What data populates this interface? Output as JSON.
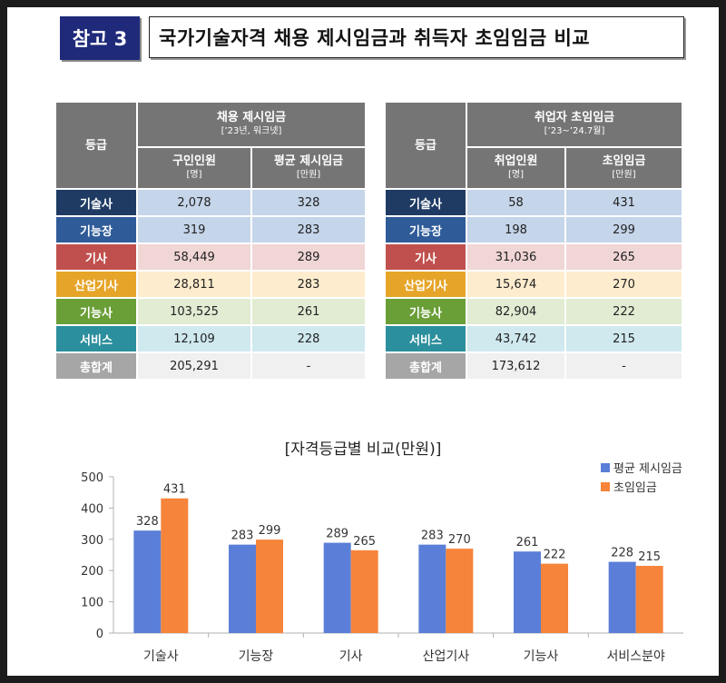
{
  "header": {
    "badge": "참고 3",
    "title": "국가기술자격 채용 제시임금과 취득자 초임임금 비교"
  },
  "colors": {
    "grade_bg": [
      "#1f3b63",
      "#2f5b99",
      "#c0504d",
      "#e6a529",
      "#6a9e37",
      "#2c8f9d",
      "#a6a6a6"
    ],
    "row_bg": [
      "#c5d5ea",
      "#c5d5ea",
      "#f1d6d6",
      "#fdeccd",
      "#e1ecd3",
      "#cfe9ee",
      "#f0f0f0"
    ],
    "series": [
      "#5b7fd8",
      "#f6843a"
    ]
  },
  "table_left": {
    "grade_header": "등급",
    "group_title": "채용 제시임금",
    "group_sub": "[’23년, 워크넷]",
    "col1": "구인인원",
    "col1_unit": "[명]",
    "col2": "평균 제시임금",
    "col2_unit": "[만원]",
    "rows": [
      {
        "grade": "기술사",
        "a": "2,078",
        "b": "328"
      },
      {
        "grade": "기능장",
        "a": "319",
        "b": "283"
      },
      {
        "grade": "기사",
        "a": "58,449",
        "b": "289"
      },
      {
        "grade": "산업기사",
        "a": "28,811",
        "b": "283"
      },
      {
        "grade": "기능사",
        "a": "103,525",
        "b": "261"
      },
      {
        "grade": "서비스",
        "a": "12,109",
        "b": "228"
      },
      {
        "grade": "총합계",
        "a": "205,291",
        "b": "-"
      }
    ]
  },
  "table_right": {
    "grade_header": "등급",
    "group_title": "취업자 초임임금",
    "group_sub": "[’23~’24.7월]",
    "col1": "취업인원",
    "col1_unit": "[명]",
    "col2": "초임임금",
    "col2_unit": "[만원]",
    "rows": [
      {
        "grade": "기술사",
        "a": "58",
        "b": "431"
      },
      {
        "grade": "기능장",
        "a": "198",
        "b": "299"
      },
      {
        "grade": "기사",
        "a": "31,036",
        "b": "265"
      },
      {
        "grade": "산업기사",
        "a": "15,674",
        "b": "270"
      },
      {
        "grade": "기능사",
        "a": "82,904",
        "b": "222"
      },
      {
        "grade": "서비스",
        "a": "43,742",
        "b": "215"
      },
      {
        "grade": "총합계",
        "a": "173,612",
        "b": "-"
      }
    ]
  },
  "chart_data": {
    "type": "bar",
    "title": "[자격등급별 비교(만원)]",
    "categories": [
      "기술사",
      "기능장",
      "기사",
      "산업기사",
      "기능사",
      "서비스분야"
    ],
    "series": [
      {
        "name": "평균 제시임금",
        "values": [
          328,
          283,
          289,
          283,
          261,
          228
        ]
      },
      {
        "name": "초임임금",
        "values": [
          431,
          299,
          265,
          270,
          222,
          215
        ]
      }
    ],
    "ylim": [
      0,
      500
    ],
    "yticks": [
      0,
      100,
      200,
      300,
      400,
      500
    ],
    "xlabel": "",
    "ylabel": "",
    "legend": "top-right"
  }
}
